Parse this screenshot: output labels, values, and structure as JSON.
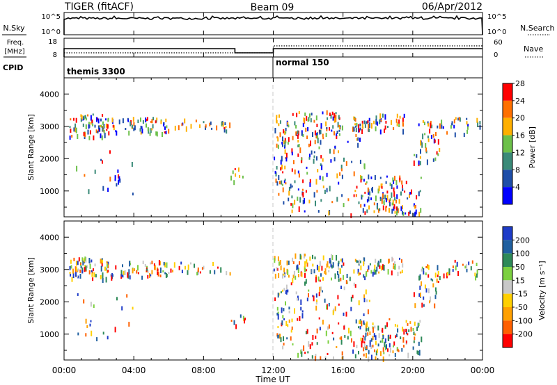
{
  "header": {
    "left": "TIGER (fitACF)",
    "center": "Beam 09",
    "right": "06/Apr/2012"
  },
  "nsky_panel": {
    "left_label": "N.Sky",
    "right_label": "N.Search",
    "left_ticks": [
      "10^5",
      "10^0"
    ],
    "right_ticks": [
      "10^5",
      "10^0"
    ]
  },
  "freq_panel": {
    "left_label_1": "Freq.",
    "left_label_2": "[MHz]",
    "right_label": "Nave",
    "left_ticks": [
      "18",
      "8"
    ],
    "right_ticks": [
      "60",
      "0"
    ]
  },
  "cpid": {
    "label": "CPID",
    "segments": [
      {
        "name": "themis 3300",
        "start_hour": 0
      },
      {
        "name": "normal 150",
        "start_hour": 12
      }
    ]
  },
  "x_axis": {
    "label": "Time UT",
    "ticks": [
      "00:00",
      "04:00",
      "08:00",
      "12:00",
      "16:00",
      "20:00",
      "00:00"
    ],
    "hours": [
      0,
      4,
      8,
      12,
      16,
      20,
      24
    ]
  },
  "chart_data": [
    {
      "type": "heatmap",
      "panel": "power",
      "ylabel": "Slant Range [km]",
      "ylim": [
        200,
        4500
      ],
      "y_ticks": [
        "1000",
        "2000",
        "3000",
        "4000"
      ],
      "y_tick_values": [
        1000,
        2000,
        3000,
        4000
      ],
      "colorbar": {
        "label": "Power [dB]",
        "ticks": [
          "4",
          "8",
          "12",
          "16",
          "20",
          "24",
          "28"
        ],
        "colors": [
          "#0000ff",
          "#1e4ea8",
          "#3a8a78",
          "#6cc04a",
          "#ffb000",
          "#ff7000",
          "#ff0000"
        ]
      }
    },
    {
      "type": "heatmap",
      "panel": "velocity",
      "ylabel": "Slant Range [km]",
      "ylim": [
        200,
        4500
      ],
      "y_ticks": [
        "1000",
        "2000",
        "3000",
        "4000"
      ],
      "y_tick_values": [
        1000,
        2000,
        3000,
        4000
      ],
      "colorbar": {
        "label": "Velocity [m s⁻¹]",
        "ticks": [
          "200",
          "100",
          "50",
          "15",
          "-15",
          "-50",
          "-100",
          "-200"
        ],
        "colors": [
          "#1e3cc8",
          "#2060a0",
          "#2e8a58",
          "#7cd040",
          "#c8c8c8",
          "#ffd000",
          "#ffa000",
          "#ff6000",
          "#ff0000"
        ]
      }
    }
  ]
}
